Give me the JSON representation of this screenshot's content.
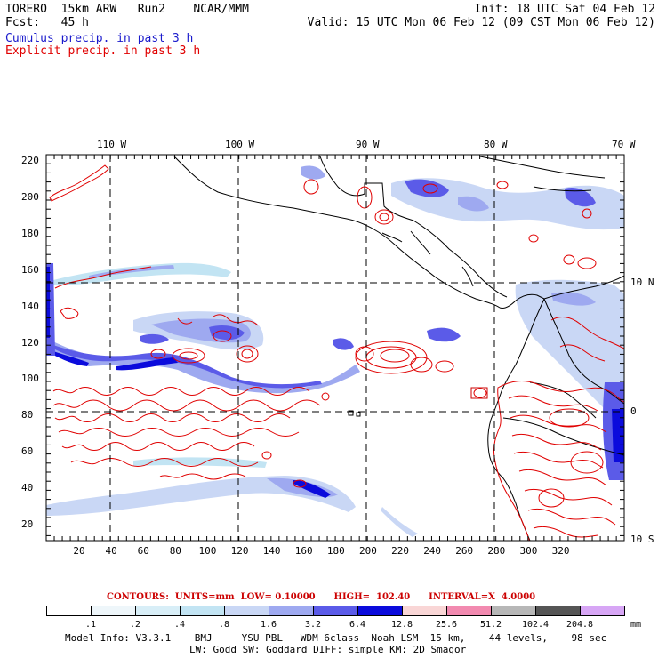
{
  "header": {
    "left_line1": "TORERO  15km ARW   Run2    NCAR/MMM",
    "left_line2": "Fcst:   45 h",
    "right_line1": "Init: 18 UTC Sat 04 Feb 12",
    "right_line2": "Valid: 15 UTC Mon 06 Feb 12 (09 CST Mon 06 Feb 12)",
    "field1": "Cumulus precip. in past 3 h",
    "field2": "Explicit precip. in past 3 h",
    "field1_color": "#1a1acc",
    "field2_color": "#e00000"
  },
  "map": {
    "top_lon_labels": [
      "110 W",
      "100 W",
      "90 W",
      "80 W",
      "70 W"
    ],
    "right_lat_labels": [
      "10 N",
      "0",
      "10 S"
    ],
    "left_grid_labels": [
      "220",
      "200",
      "180",
      "160",
      "140",
      "120",
      "100",
      "80",
      "60",
      "40",
      "20"
    ],
    "bottom_grid_labels": [
      "20",
      "40",
      "60",
      "80",
      "100",
      "120",
      "140",
      "160",
      "180",
      "200",
      "220",
      "240",
      "260",
      "280",
      "300",
      "320"
    ]
  },
  "contours_info": {
    "text": "CONTOURS:  UNITS=mm  LOW= 0.10000      HIGH=  102.40      INTERVAL=X  4.0000",
    "color": "#cc0000"
  },
  "legend": {
    "labels": [
      ".1",
      ".2",
      ".4",
      ".8",
      "1.6",
      "3.2",
      "6.4",
      "12.8",
      "25.6",
      "51.2",
      "102.4",
      "204.8"
    ],
    "unit": "mm",
    "colors": [
      "#ffffff",
      "#eef6fa",
      "#d8eef7",
      "#c2e4f3",
      "#c9d7f5",
      "#9ea9f0",
      "#5b5be8",
      "#0b0bdc",
      "#f9d6d6",
      "#f28ab0",
      "#b7b7b7",
      "#555555",
      "#d7a6f5"
    ]
  },
  "footer": {
    "line1": "Model Info: V3.3.1    BMJ     YSU PBL   WDM 6class  Noah LSM  15 km,    44 levels,    98 sec",
    "line2": "LW: Godd SW: Goddard DIFF: simple KM: 2D Smagor"
  }
}
